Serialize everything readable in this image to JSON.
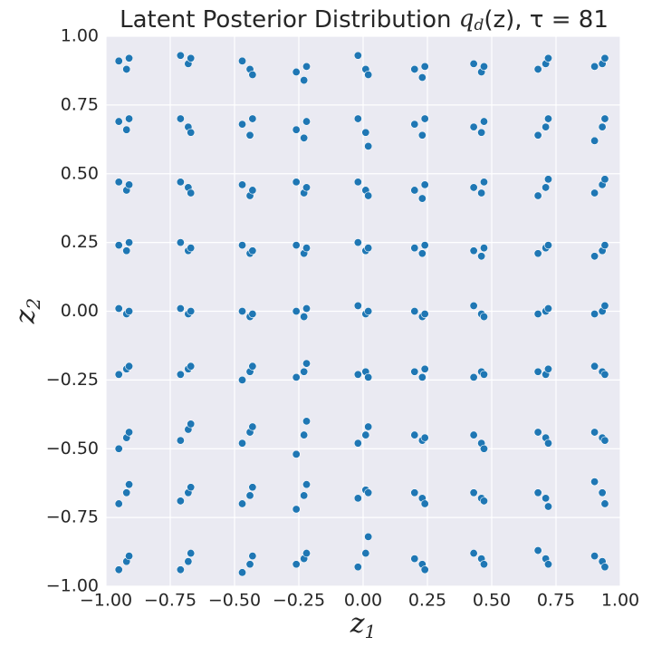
{
  "chart_data": {
    "type": "scatter",
    "title": {
      "text": "Latent Posterior Distribution ",
      "math": "q",
      "sub": "d",
      "rest": "(z), τ = 81"
    },
    "xlabel": {
      "text": "z",
      "sub": "1"
    },
    "ylabel": {
      "text": "z",
      "sub": "2"
    },
    "color": "#1f77b4",
    "grid": true,
    "xlim": [
      -1,
      1
    ],
    "ylim": [
      -1,
      1
    ],
    "xticks": [
      {
        "value": -1,
        "label": "−1.00"
      },
      {
        "value": -0.75,
        "label": "−0.75"
      },
      {
        "value": -0.5,
        "label": "−0.50"
      },
      {
        "value": -0.25,
        "label": "−0.25"
      },
      {
        "value": 0,
        "label": "0.00"
      },
      {
        "value": 0.25,
        "label": "0.25"
      },
      {
        "value": 0.5,
        "label": "0.50"
      },
      {
        "value": 0.75,
        "label": "0.75"
      },
      {
        "value": 1,
        "label": "1.00"
      }
    ],
    "yticks": [
      {
        "value": -1,
        "label": "−1.00"
      },
      {
        "value": -0.75,
        "label": "−0.75"
      },
      {
        "value": -0.5,
        "label": "−0.50"
      },
      {
        "value": -0.25,
        "label": "−0.25"
      },
      {
        "value": 0,
        "label": "0.00"
      },
      {
        "value": 0.25,
        "label": "0.25"
      },
      {
        "value": 0.5,
        "label": "0.50"
      },
      {
        "value": 0.75,
        "label": "0.75"
      },
      {
        "value": 1,
        "label": "1.00"
      }
    ],
    "x": [
      -0.95,
      -0.92,
      -0.91,
      -0.71,
      -0.68,
      -0.67,
      -0.47,
      -0.44,
      -0.43,
      -0.26,
      -0.23,
      -0.22,
      -0.02,
      0.01,
      0.02,
      0.2,
      0.23,
      0.24,
      0.43,
      0.46,
      0.47,
      0.68,
      0.71,
      0.72,
      0.9,
      0.93,
      0.94,
      -0.95,
      -0.92,
      -0.91,
      -0.71,
      -0.68,
      -0.67,
      -0.47,
      -0.44,
      -0.43,
      -0.26,
      -0.23,
      -0.22,
      -0.02,
      0.01,
      0.02,
      0.2,
      0.23,
      0.24,
      0.43,
      0.46,
      0.47,
      0.68,
      0.71,
      0.72,
      0.9,
      0.93,
      0.94,
      -0.95,
      -0.92,
      -0.91,
      -0.71,
      -0.68,
      -0.67,
      -0.47,
      -0.44,
      -0.43,
      -0.26,
      -0.23,
      -0.22,
      -0.02,
      0.01,
      0.02,
      0.2,
      0.23,
      0.24,
      0.43,
      0.46,
      0.47,
      0.68,
      0.71,
      0.72,
      0.9,
      0.93,
      0.94,
      -0.95,
      -0.92,
      -0.91,
      -0.71,
      -0.68,
      -0.67,
      -0.47,
      -0.44,
      -0.43,
      -0.26,
      -0.23,
      -0.22,
      -0.02,
      0.01,
      0.02,
      0.2,
      0.23,
      0.24,
      0.43,
      0.46,
      0.47,
      0.68,
      0.71,
      0.72,
      0.9,
      0.93,
      0.94,
      -0.95,
      -0.92,
      -0.91,
      -0.71,
      -0.68,
      -0.67,
      -0.47,
      -0.44,
      -0.43,
      -0.26,
      -0.23,
      -0.22,
      -0.02,
      0.01,
      0.02,
      0.2,
      0.23,
      0.24,
      0.43,
      0.46,
      0.47,
      0.68,
      0.71,
      0.72,
      0.9,
      0.93,
      0.94,
      -0.95,
      -0.92,
      -0.91,
      -0.71,
      -0.68,
      -0.67,
      -0.47,
      -0.44,
      -0.43,
      -0.26,
      -0.23,
      -0.22,
      -0.02,
      0.01,
      0.02,
      0.2,
      0.23,
      0.24,
      0.43,
      0.46,
      0.47,
      0.68,
      0.71,
      0.72,
      0.9,
      0.93,
      0.94,
      -0.95,
      -0.92,
      -0.91,
      -0.71,
      -0.68,
      -0.67,
      -0.47,
      -0.44,
      -0.43,
      -0.26,
      -0.23,
      -0.22,
      -0.02,
      0.01,
      0.02,
      0.2,
      0.23,
      0.24,
      0.43,
      0.46,
      0.47,
      0.68,
      0.71,
      0.72,
      0.9,
      0.93,
      0.94,
      -0.95,
      -0.92,
      -0.91,
      -0.71,
      -0.68,
      -0.67,
      -0.47,
      -0.44,
      -0.43,
      -0.26,
      -0.23,
      -0.22,
      -0.02,
      0.01,
      0.02,
      0.2,
      0.23,
      0.24,
      0.43,
      0.46,
      0.47,
      0.68,
      0.71,
      0.72,
      0.9,
      0.93,
      0.94,
      -0.95,
      -0.92,
      -0.91,
      -0.71,
      -0.68,
      -0.67,
      -0.47,
      -0.44,
      -0.43,
      -0.26,
      -0.23,
      -0.22,
      -0.02,
      0.01,
      0.02,
      0.2,
      0.23,
      0.24,
      0.43,
      0.46,
      0.47,
      0.68,
      0.71,
      0.72,
      0.9,
      0.93,
      0.94
    ],
    "values": [
      0.91,
      0.88,
      0.92,
      0.93,
      0.9,
      0.92,
      0.91,
      0.88,
      0.86,
      0.87,
      0.84,
      0.89,
      0.93,
      0.88,
      0.86,
      0.88,
      0.85,
      0.89,
      0.9,
      0.87,
      0.89,
      0.88,
      0.9,
      0.92,
      0.89,
      0.9,
      0.92,
      0.69,
      0.66,
      0.7,
      0.7,
      0.67,
      0.65,
      0.68,
      0.64,
      0.7,
      0.66,
      0.63,
      0.69,
      0.7,
      0.65,
      0.6,
      0.68,
      0.64,
      0.7,
      0.67,
      0.65,
      0.69,
      0.64,
      0.67,
      0.7,
      0.62,
      0.67,
      0.7,
      0.47,
      0.44,
      0.46,
      0.47,
      0.45,
      0.43,
      0.46,
      0.42,
      0.44,
      0.47,
      0.43,
      0.45,
      0.47,
      0.44,
      0.42,
      0.44,
      0.41,
      0.46,
      0.45,
      0.43,
      0.47,
      0.42,
      0.45,
      0.48,
      0.43,
      0.46,
      0.48,
      0.24,
      0.22,
      0.25,
      0.25,
      0.22,
      0.23,
      0.24,
      0.21,
      0.22,
      0.24,
      0.21,
      0.23,
      0.25,
      0.22,
      0.23,
      0.23,
      0.21,
      0.24,
      0.22,
      0.2,
      0.23,
      0.21,
      0.23,
      0.24,
      0.2,
      0.22,
      0.24,
      0.01,
      -0.01,
      0.0,
      0.01,
      -0.01,
      0.0,
      0.0,
      -0.02,
      -0.01,
      0.0,
      -0.02,
      0.01,
      0.02,
      -0.01,
      0.0,
      0.0,
      -0.02,
      -0.01,
      0.02,
      -0.01,
      -0.02,
      -0.01,
      0.0,
      0.01,
      -0.01,
      0.0,
      0.02,
      -0.23,
      -0.21,
      -0.2,
      -0.23,
      -0.21,
      -0.2,
      -0.25,
      -0.22,
      -0.2,
      -0.24,
      -0.22,
      -0.19,
      -0.23,
      -0.22,
      -0.24,
      -0.22,
      -0.24,
      -0.21,
      -0.24,
      -0.22,
      -0.23,
      -0.22,
      -0.23,
      -0.21,
      -0.2,
      -0.22,
      -0.23,
      -0.5,
      -0.46,
      -0.44,
      -0.47,
      -0.43,
      -0.41,
      -0.48,
      -0.44,
      -0.42,
      -0.52,
      -0.45,
      -0.4,
      -0.48,
      -0.45,
      -0.42,
      -0.45,
      -0.47,
      -0.46,
      -0.45,
      -0.48,
      -0.5,
      -0.44,
      -0.46,
      -0.48,
      -0.44,
      -0.46,
      -0.47,
      -0.7,
      -0.66,
      -0.63,
      -0.69,
      -0.66,
      -0.64,
      -0.7,
      -0.67,
      -0.64,
      -0.72,
      -0.67,
      -0.63,
      -0.68,
      -0.65,
      -0.66,
      -0.66,
      -0.68,
      -0.7,
      -0.66,
      -0.68,
      -0.69,
      -0.66,
      -0.68,
      -0.71,
      -0.62,
      -0.66,
      -0.7,
      -0.94,
      -0.91,
      -0.89,
      -0.94,
      -0.91,
      -0.88,
      -0.95,
      -0.92,
      -0.89,
      -0.92,
      -0.9,
      -0.88,
      -0.93,
      -0.88,
      -0.82,
      -0.9,
      -0.92,
      -0.94,
      -0.88,
      -0.9,
      -0.92,
      -0.87,
      -0.9,
      -0.92,
      -0.89,
      -0.91,
      -0.93
    ]
  }
}
